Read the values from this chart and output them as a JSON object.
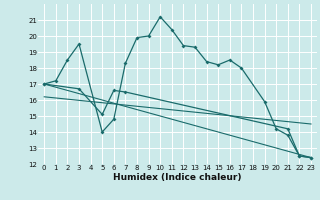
{
  "xlabel": "Humidex (Indice chaleur)",
  "bg_color": "#cceaea",
  "line_color": "#1a6b6b",
  "grid_color": "#ffffff",
  "ylim": [
    12,
    22
  ],
  "xlim": [
    -0.5,
    23.5
  ],
  "yticks": [
    12,
    13,
    14,
    15,
    16,
    17,
    18,
    19,
    20,
    21
  ],
  "xticks": [
    0,
    1,
    2,
    3,
    4,
    5,
    6,
    7,
    8,
    9,
    10,
    11,
    12,
    13,
    14,
    15,
    16,
    17,
    18,
    19,
    20,
    21,
    22,
    23
  ],
  "line1_x": [
    0,
    1,
    2,
    3,
    5,
    6,
    7,
    8,
    9,
    10,
    11,
    12,
    13,
    14,
    15,
    16,
    17,
    19,
    20,
    21,
    22,
    23
  ],
  "line1_y": [
    17.0,
    17.2,
    18.5,
    19.5,
    14.0,
    14.8,
    18.3,
    19.9,
    20.0,
    21.2,
    20.4,
    19.4,
    19.3,
    18.4,
    18.2,
    18.5,
    18.0,
    15.9,
    14.2,
    13.8,
    12.5,
    12.4
  ],
  "line2_x": [
    0,
    3,
    5,
    6,
    7,
    21,
    22,
    23
  ],
  "line2_y": [
    17.0,
    16.7,
    15.1,
    16.6,
    16.5,
    14.2,
    12.5,
    12.4
  ],
  "line3_x": [
    0,
    23
  ],
  "line3_y": [
    17.0,
    12.4
  ],
  "line4_x": [
    0,
    23
  ],
  "line4_y": [
    16.2,
    14.5
  ],
  "tick_fontsize": 5.0,
  "xlabel_fontsize": 6.5
}
